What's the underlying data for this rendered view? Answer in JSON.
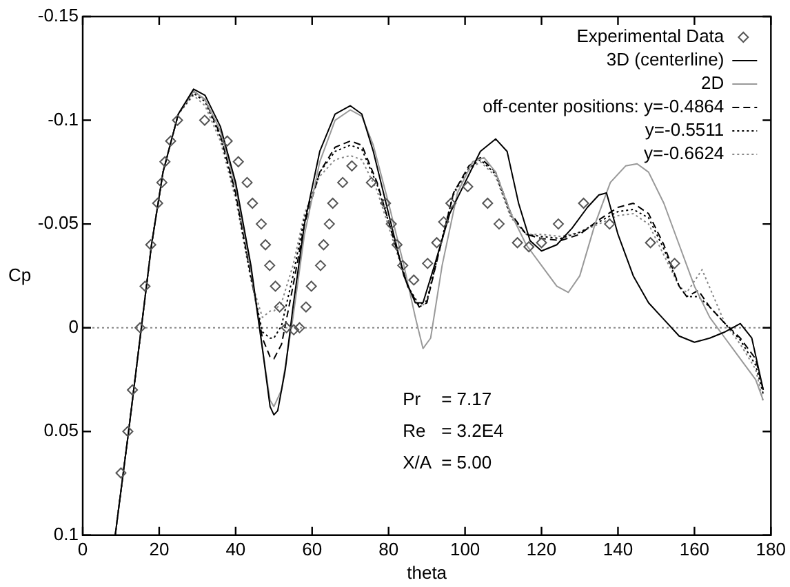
{
  "chart_data": {
    "type": "line",
    "xlabel": "theta",
    "ylabel": "Cp",
    "xlim": [
      0,
      180
    ],
    "xticks": [
      0,
      20,
      40,
      60,
      80,
      100,
      120,
      140,
      160,
      180
    ],
    "ylim": [
      0.1,
      -0.15
    ],
    "yticks": [
      0.1,
      0.05,
      0,
      -0.05,
      -0.1,
      -0.15
    ],
    "grid": false,
    "legend": "top right",
    "ref_lines": [
      {
        "axis": "y",
        "value": 0,
        "color": "#888888",
        "line_style": "dotted"
      }
    ],
    "annotations": [
      "Pr   = 7.17",
      "Re   = 3.2E4",
      "X/A  = 5.00"
    ],
    "series": [
      {
        "name": "Experimental Data",
        "type": "scatter",
        "marker": "diamond",
        "color": "#555555",
        "x": [
          10,
          11.8,
          13,
          15,
          16.3,
          17.8,
          19.6,
          20.7,
          21.5,
          23,
          24.8,
          31.9,
          37.8,
          40.7,
          43,
          44.4,
          46.7,
          47.8,
          48.9,
          50.4,
          51.5,
          53.3,
          55.2,
          56.7,
          58.4,
          59.8,
          62.2,
          63,
          64.5,
          65.4,
          68,
          70.4,
          75.5,
          79.2,
          80.7,
          82.2,
          83.7,
          86.6,
          90.2,
          92.6,
          94.4,
          96.3,
          100.7,
          105.9,
          108.9,
          113.7,
          116.7,
          120,
          124.4,
          131,
          137.8,
          148.5,
          154.8
        ],
        "values": [
          0.07,
          0.05,
          0.03,
          0,
          -0.02,
          -0.04,
          -0.06,
          -0.07,
          -0.08,
          -0.09,
          -0.1,
          -0.1,
          -0.09,
          -0.08,
          -0.07,
          -0.06,
          -0.05,
          -0.04,
          -0.03,
          -0.02,
          -0.01,
          0,
          0.001,
          0,
          -0.01,
          -0.02,
          -0.03,
          -0.04,
          -0.05,
          -0.06,
          -0.07,
          -0.078,
          -0.07,
          -0.06,
          -0.05,
          -0.04,
          -0.03,
          -0.023,
          -0.031,
          -0.041,
          -0.051,
          -0.06,
          -0.068,
          -0.06,
          -0.05,
          -0.041,
          -0.039,
          -0.041,
          -0.05,
          -0.06,
          -0.05,
          -0.041,
          -0.031
        ]
      },
      {
        "name": "3D (centerline)",
        "type": "line",
        "marker": "none",
        "line_style": "solid",
        "color": "#000000",
        "x": [
          8.5,
          12,
          15,
          18,
          21,
          25,
          29,
          32,
          36,
          40,
          44,
          47,
          49,
          50,
          51,
          53,
          55,
          58,
          62,
          66,
          70,
          73,
          76,
          80,
          84,
          87,
          89,
          92,
          96,
          100,
          104,
          108,
          111,
          114,
          117,
          120,
          124,
          128,
          132,
          135,
          137,
          140,
          144,
          148,
          152,
          156,
          160,
          164,
          168,
          172,
          175,
          178
        ],
        "values": [
          0.1,
          0.05,
          0.005,
          -0.04,
          -0.075,
          -0.103,
          -0.115,
          -0.112,
          -0.097,
          -0.07,
          -0.03,
          0.01,
          0.038,
          0.042,
          0.04,
          0.02,
          -0.01,
          -0.05,
          -0.085,
          -0.103,
          -0.107,
          -0.103,
          -0.085,
          -0.055,
          -0.025,
          -0.012,
          -0.012,
          -0.03,
          -0.055,
          -0.07,
          -0.085,
          -0.091,
          -0.085,
          -0.06,
          -0.042,
          -0.037,
          -0.04,
          -0.048,
          -0.058,
          -0.064,
          -0.065,
          -0.045,
          -0.025,
          -0.012,
          -0.004,
          0.004,
          0.007,
          0.005,
          0.002,
          -0.002,
          0.005,
          0.03
        ]
      },
      {
        "name": "2D",
        "type": "line",
        "marker": "none",
        "line_style": "solid",
        "color": "#999999",
        "x": [
          8.5,
          12,
          15,
          18,
          21,
          25,
          29,
          32,
          36,
          40,
          44,
          47,
          49,
          50,
          52,
          55,
          58,
          62,
          66,
          70,
          73,
          76,
          80,
          84,
          87,
          89,
          91,
          94,
          98,
          102,
          105,
          108,
          112,
          116,
          120,
          124,
          127,
          130,
          134,
          138,
          142,
          145,
          148,
          152,
          156,
          160,
          164,
          168,
          172,
          176,
          178
        ],
        "values": [
          0.1,
          0.05,
          0.005,
          -0.04,
          -0.075,
          -0.103,
          -0.114,
          -0.11,
          -0.095,
          -0.068,
          -0.028,
          0.01,
          0.035,
          0.038,
          0.03,
          -0.005,
          -0.045,
          -0.08,
          -0.1,
          -0.105,
          -0.102,
          -0.088,
          -0.06,
          -0.03,
          -0.005,
          0.01,
          0.005,
          -0.03,
          -0.065,
          -0.08,
          -0.082,
          -0.075,
          -0.055,
          -0.04,
          -0.03,
          -0.02,
          -0.017,
          -0.025,
          -0.05,
          -0.07,
          -0.078,
          -0.079,
          -0.075,
          -0.06,
          -0.04,
          -0.02,
          -0.005,
          0.005,
          0.015,
          0.025,
          0.035
        ]
      },
      {
        "name": "off-center positions: y=-0.4864",
        "type": "line",
        "marker": "none",
        "line_style": "dashed",
        "color": "#000000",
        "x": [
          8.5,
          12,
          15,
          18,
          21,
          25,
          29,
          32,
          36,
          40,
          44,
          47,
          49,
          50,
          52,
          55,
          58,
          62,
          66,
          70,
          73,
          77,
          81,
          85,
          88,
          90,
          93,
          97,
          101,
          104,
          108,
          112,
          116,
          120,
          125,
          130,
          135,
          140,
          144,
          148,
          152,
          156,
          158,
          161,
          164,
          168,
          172,
          176,
          178
        ],
        "values": [
          0.1,
          0.05,
          0.005,
          -0.04,
          -0.075,
          -0.103,
          -0.114,
          -0.11,
          -0.093,
          -0.065,
          -0.025,
          0.005,
          0.014,
          0.015,
          0.008,
          -0.02,
          -0.05,
          -0.075,
          -0.087,
          -0.09,
          -0.088,
          -0.07,
          -0.045,
          -0.02,
          -0.01,
          -0.012,
          -0.035,
          -0.065,
          -0.078,
          -0.082,
          -0.075,
          -0.055,
          -0.045,
          -0.043,
          -0.042,
          -0.045,
          -0.052,
          -0.058,
          -0.06,
          -0.055,
          -0.04,
          -0.02,
          -0.015,
          -0.018,
          -0.01,
          -0.002,
          0.005,
          0.015,
          0.03
        ]
      },
      {
        "name": "y=-0.5511",
        "type": "line",
        "marker": "none",
        "line_style": "dotted",
        "color": "#000000",
        "x": [
          8.5,
          12,
          15,
          18,
          21,
          25,
          29,
          32,
          36,
          40,
          44,
          47,
          49,
          50,
          52,
          55,
          58,
          62,
          66,
          70,
          73,
          77,
          81,
          85,
          88,
          90,
          93,
          97,
          101,
          104,
          108,
          112,
          116,
          120,
          125,
          130,
          135,
          140,
          144,
          148,
          152,
          156,
          158,
          161,
          164,
          168,
          172,
          176,
          178
        ],
        "values": [
          0.1,
          0.05,
          0.005,
          -0.04,
          -0.075,
          -0.103,
          -0.113,
          -0.109,
          -0.092,
          -0.064,
          -0.024,
          0.002,
          0.005,
          0.005,
          -0.001,
          -0.025,
          -0.053,
          -0.075,
          -0.085,
          -0.088,
          -0.086,
          -0.069,
          -0.045,
          -0.02,
          -0.011,
          -0.013,
          -0.036,
          -0.065,
          -0.077,
          -0.081,
          -0.074,
          -0.054,
          -0.045,
          -0.044,
          -0.043,
          -0.046,
          -0.051,
          -0.056,
          -0.057,
          -0.053,
          -0.038,
          -0.02,
          -0.015,
          -0.015,
          -0.01,
          -0.002,
          0.006,
          0.018,
          0.032
        ]
      },
      {
        "name": "y=-0.6624",
        "type": "line",
        "marker": "none",
        "line_style": "dotted",
        "color": "#888888",
        "x": [
          8.5,
          12,
          15,
          18,
          21,
          25,
          29,
          32,
          36,
          40,
          44,
          47,
          49,
          50,
          52,
          55,
          58,
          62,
          66,
          70,
          73,
          77,
          81,
          85,
          88,
          90,
          93,
          97,
          101,
          104,
          108,
          112,
          116,
          120,
          125,
          130,
          135,
          140,
          144,
          148,
          152,
          156,
          158,
          162,
          165,
          168,
          172,
          176,
          178
        ],
        "values": [
          0.1,
          0.05,
          0.005,
          -0.04,
          -0.075,
          -0.103,
          -0.112,
          -0.107,
          -0.09,
          -0.062,
          -0.023,
          -0.005,
          -0.008,
          -0.008,
          -0.012,
          -0.03,
          -0.055,
          -0.073,
          -0.081,
          -0.083,
          -0.081,
          -0.066,
          -0.043,
          -0.02,
          -0.01,
          -0.012,
          -0.035,
          -0.064,
          -0.076,
          -0.08,
          -0.073,
          -0.053,
          -0.045,
          -0.045,
          -0.044,
          -0.046,
          -0.05,
          -0.054,
          -0.055,
          -0.05,
          -0.035,
          -0.02,
          -0.017,
          -0.028,
          -0.015,
          -0.002,
          0.008,
          0.02,
          0.036
        ]
      }
    ]
  }
}
